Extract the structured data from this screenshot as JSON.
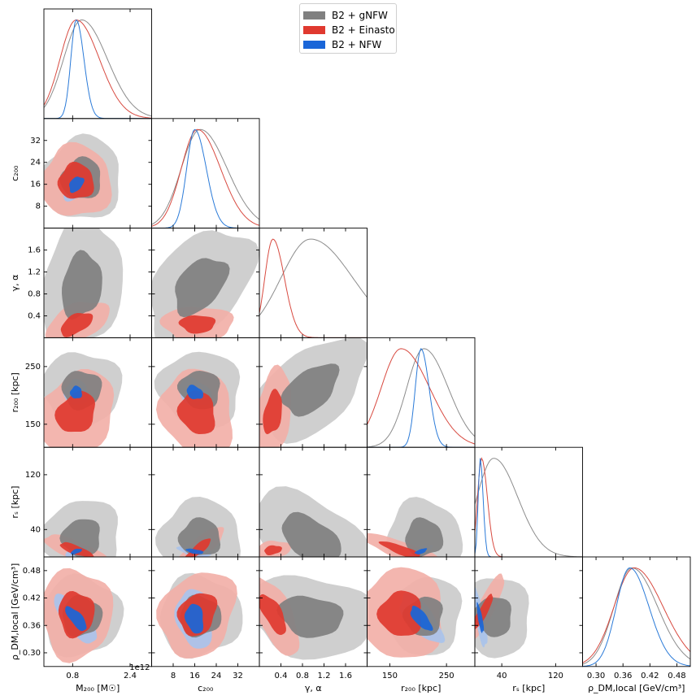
{
  "chart_data": {
    "type": "corner",
    "title": "",
    "parameters": [
      {
        "id": "M200",
        "label": "M₂₀₀ [M☉]",
        "offset_text": "1e12",
        "ticks": [
          0.8,
          2.4
        ],
        "tick_labels": [
          "0.8",
          "2.4"
        ],
        "range": [
          0.0,
          3.0
        ]
      },
      {
        "id": "c200",
        "label": "c₂₀₀",
        "ticks": [
          8,
          16,
          24,
          32
        ],
        "tick_labels": [
          "8",
          "16",
          "24",
          "32"
        ],
        "range": [
          0,
          40
        ]
      },
      {
        "id": "gamma_alpha",
        "label": "γ, α",
        "ticks": [
          0.4,
          0.8,
          1.2,
          1.6
        ],
        "tick_labels": [
          "0.4",
          "0.8",
          "1.2",
          "1.6"
        ],
        "range": [
          0,
          2
        ]
      },
      {
        "id": "r200",
        "label": "r₂₀₀ [kpc]",
        "ticks": [
          150,
          250
        ],
        "tick_labels": [
          "150",
          "250"
        ],
        "range": [
          110,
          300
        ]
      },
      {
        "id": "rs",
        "label": "rₛ [kpc]",
        "ticks": [
          40,
          120
        ],
        "tick_labels": [
          "40",
          "120"
        ],
        "range": [
          0,
          160
        ]
      },
      {
        "id": "rho",
        "label": "ρ_DM,local [GeV/cm³]",
        "ticks": [
          0.3,
          0.36,
          0.42,
          0.48
        ],
        "tick_labels": [
          "0.30",
          "0.36",
          "0.42",
          "0.48"
        ],
        "range": [
          0.27,
          0.51
        ]
      }
    ],
    "series": [
      {
        "name": "B2 + gNFW",
        "color": "#808080",
        "light": "#cbcbcb",
        "line": "#8c8c8c",
        "means": [
          1.05,
          18,
          0.95,
          210,
          28,
          0.38
        ],
        "sds": [
          0.5,
          7,
          0.55,
          30,
          25,
          0.04
        ],
        "spread": [
          [
            1.0,
            0.1
          ],
          [
            0.55,
            1.0
          ],
          [
            0.9,
            0.3
          ],
          [
            0.9,
            0.1
          ],
          [
            1.1,
            0.4
          ],
          [
            0.6,
            1.0
          ]
        ]
      },
      {
        "name": "B2 + Einasto",
        "color": "#e0392f",
        "light": "#f2b0a8",
        "line": "#d84a40",
        "means": [
          0.9,
          17,
          0.25,
          170,
          10,
          0.385
        ],
        "sds": [
          0.45,
          6,
          0.15,
          35,
          6,
          0.045
        ],
        "spread": [
          [
            1.0,
            0.1
          ],
          [
            0.55,
            1.0
          ],
          [
            0.9,
            0.3
          ],
          [
            0.9,
            0.1
          ],
          [
            1.1,
            0.4
          ],
          [
            0.6,
            1.0
          ]
        ]
      },
      {
        "name": "B2 + NFW",
        "color": "#1a66d8",
        "light": "#a9c3ec",
        "line": "#2a7ad8",
        "means": [
          0.9,
          16,
          null,
          205,
          8,
          0.375
        ],
        "sds": [
          0.15,
          3,
          null,
          10,
          3,
          0.03
        ],
        "spread": [
          [
            1.0,
            0.1
          ],
          [
            0.55,
            1.0
          ],
          [
            0.9,
            0.3
          ],
          [
            0.9,
            0.1
          ],
          [
            1.1,
            0.4
          ],
          [
            0.6,
            1.0
          ]
        ]
      }
    ],
    "legend": {
      "location": "top-center",
      "entries": [
        "B2 + gNFW",
        "B2 + Einasto",
        "B2 + NFW"
      ]
    }
  }
}
